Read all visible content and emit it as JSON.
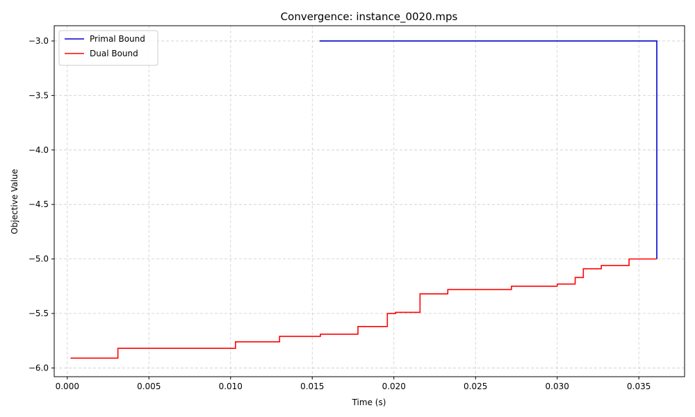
{
  "chart_data": {
    "type": "line",
    "title": "Convergence: instance_0020.mps",
    "xlabel": "Time (s)",
    "ylabel": "Objective Value",
    "xlim": [
      -0.0008,
      0.0378
    ],
    "ylim": [
      -6.08,
      -2.86
    ],
    "x_ticks": [
      0.0,
      0.005,
      0.01,
      0.015,
      0.02,
      0.025,
      0.03,
      0.035
    ],
    "x_tick_labels": [
      "0.000",
      "0.005",
      "0.010",
      "0.015",
      "0.020",
      "0.025",
      "0.030",
      "0.035"
    ],
    "y_ticks": [
      -3.0,
      -3.5,
      -4.0,
      -4.5,
      -5.0,
      -5.5,
      -6.0
    ],
    "y_tick_labels": [
      "−3.0",
      "−3.5",
      "−4.0",
      "−4.5",
      "−5.0",
      "−5.5",
      "−6.0"
    ],
    "grid": true,
    "legend_position": "top-left",
    "series": [
      {
        "name": "Primal Bound",
        "color": "#0000cc",
        "step": "post",
        "x": [
          0.01545,
          0.0361,
          0.0361
        ],
        "y": [
          -3.0,
          -3.0,
          -5.0
        ]
      },
      {
        "name": "Dual Bound",
        "color": "#ff0000",
        "step": "post",
        "x": [
          0.0002,
          0.0031,
          0.0103,
          0.013,
          0.0155,
          0.0178,
          0.0196,
          0.0201,
          0.0216,
          0.0233,
          0.0266,
          0.0272,
          0.03,
          0.0311,
          0.0316,
          0.0327,
          0.0344,
          0.0361
        ],
        "y": [
          -5.91,
          -5.82,
          -5.76,
          -5.71,
          -5.69,
          -5.62,
          -5.5,
          -5.49,
          -5.32,
          -5.28,
          -5.28,
          -5.25,
          -5.23,
          -5.17,
          -5.09,
          -5.06,
          -5.0,
          -5.0
        ]
      }
    ]
  }
}
